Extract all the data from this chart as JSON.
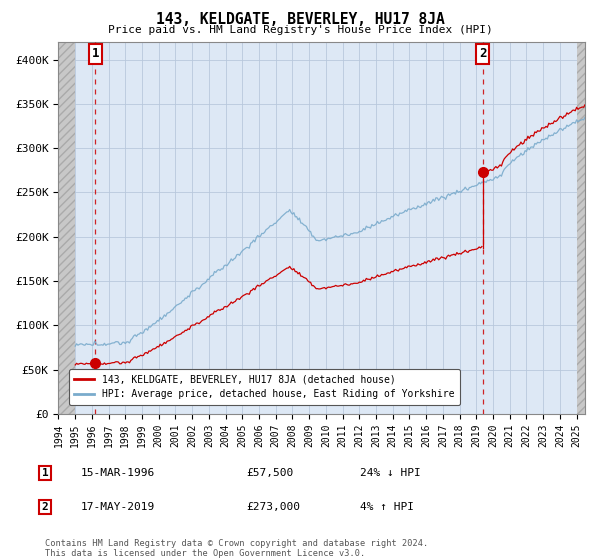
{
  "title": "143, KELDGATE, BEVERLEY, HU17 8JA",
  "subtitle": "Price paid vs. HM Land Registry's House Price Index (HPI)",
  "ylim": [
    0,
    420000
  ],
  "xlim_start": 1994.0,
  "xlim_end": 2025.5,
  "hatch_end": 1995.0,
  "point1_x": 1996.21,
  "point1_y": 57500,
  "point2_x": 2019.37,
  "point2_y": 273000,
  "legend_line1": "143, KELDGATE, BEVERLEY, HU17 8JA (detached house)",
  "legend_line2": "HPI: Average price, detached house, East Riding of Yorkshire",
  "annotation1_date": "15-MAR-1996",
  "annotation1_price": "£57,500",
  "annotation1_hpi": "24% ↓ HPI",
  "annotation2_date": "17-MAY-2019",
  "annotation2_price": "£273,000",
  "annotation2_hpi": "4% ↑ HPI",
  "footer": "Contains HM Land Registry data © Crown copyright and database right 2024.\nThis data is licensed under the Open Government Licence v3.0.",
  "line_red": "#cc0000",
  "line_blue": "#7aabcc",
  "bg_color": "#dde8f5",
  "grid_color": "#b8c8dc"
}
